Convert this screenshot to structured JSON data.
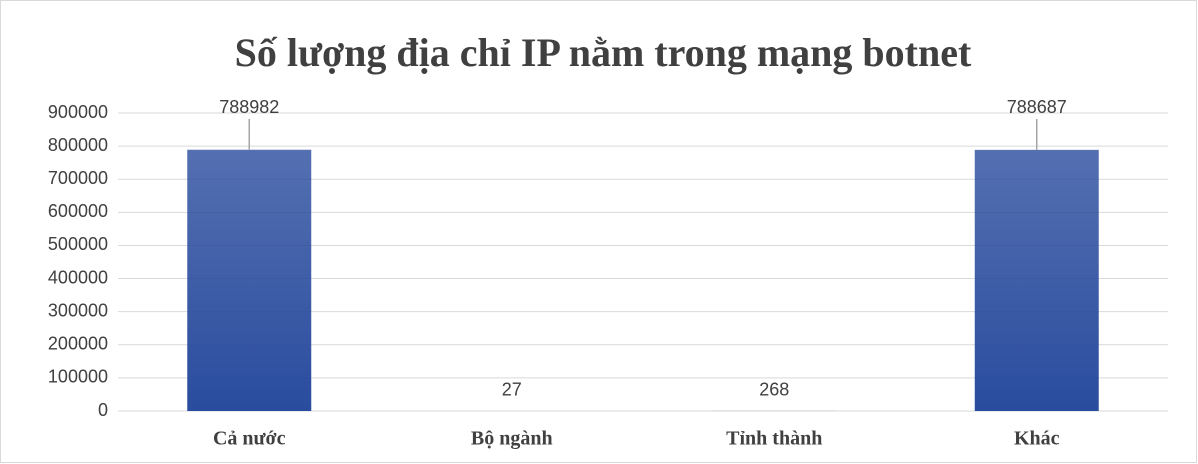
{
  "chart_data": {
    "type": "bar",
    "title": "Số lượng địa chỉ IP nằm trong mạng botnet",
    "categories": [
      "Cả nước",
      "Bộ ngành",
      "Tỉnh thành",
      "Khác"
    ],
    "values": [
      788982,
      27,
      268,
      788687
    ],
    "color": "#2a4c9e",
    "ylim": [
      0,
      900000
    ],
    "yticks": [
      0,
      100000,
      200000,
      300000,
      400000,
      500000,
      600000,
      700000,
      800000,
      900000
    ],
    "grid": true
  }
}
